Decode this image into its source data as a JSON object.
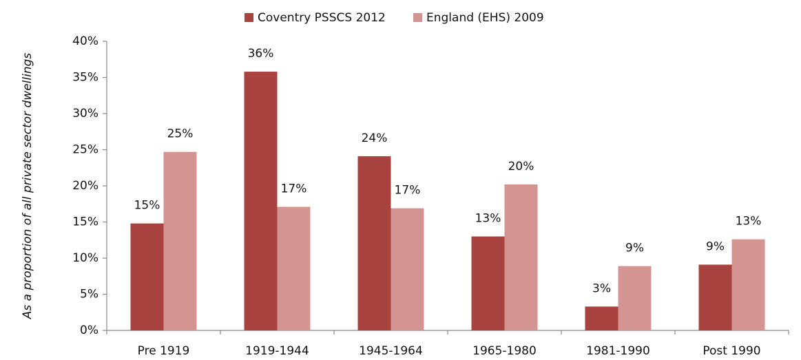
{
  "chart_data": {
    "type": "bar",
    "y_label": "As a proportion of all private sector dwellings",
    "categories": [
      "Pre 1919",
      "1919-1944",
      "1945-1964",
      "1965-1980",
      "1981-1990",
      "Post 1990"
    ],
    "series": [
      {
        "name": "Coventry PSSCS 2012",
        "color": "#a8433f",
        "values": [
          14.8,
          35.8,
          24.1,
          13.0,
          3.3,
          9.1
        ],
        "value_labels": [
          "15%",
          "36%",
          "24%",
          "13%",
          "3%",
          "9%"
        ]
      },
      {
        "name": "England (EHS) 2009",
        "color": "#d49492",
        "values": [
          24.7,
          17.1,
          16.9,
          20.2,
          8.9,
          12.6
        ],
        "value_labels": [
          "25%",
          "17%",
          "17%",
          "20%",
          "9%",
          "13%"
        ]
      }
    ],
    "ylim": [
      0,
      40
    ],
    "yticks": [
      {
        "value": 0,
        "label": "0%"
      },
      {
        "value": 5,
        "label": "5%"
      },
      {
        "value": 10,
        "label": "10%"
      },
      {
        "value": 15,
        "label": "15%"
      },
      {
        "value": 20,
        "label": "20%"
      },
      {
        "value": 25,
        "label": "25%"
      },
      {
        "value": 30,
        "label": "30%"
      },
      {
        "value": 35,
        "label": "35%"
      },
      {
        "value": 40,
        "label": "40%"
      }
    ],
    "grid": false,
    "legend": "top"
  }
}
